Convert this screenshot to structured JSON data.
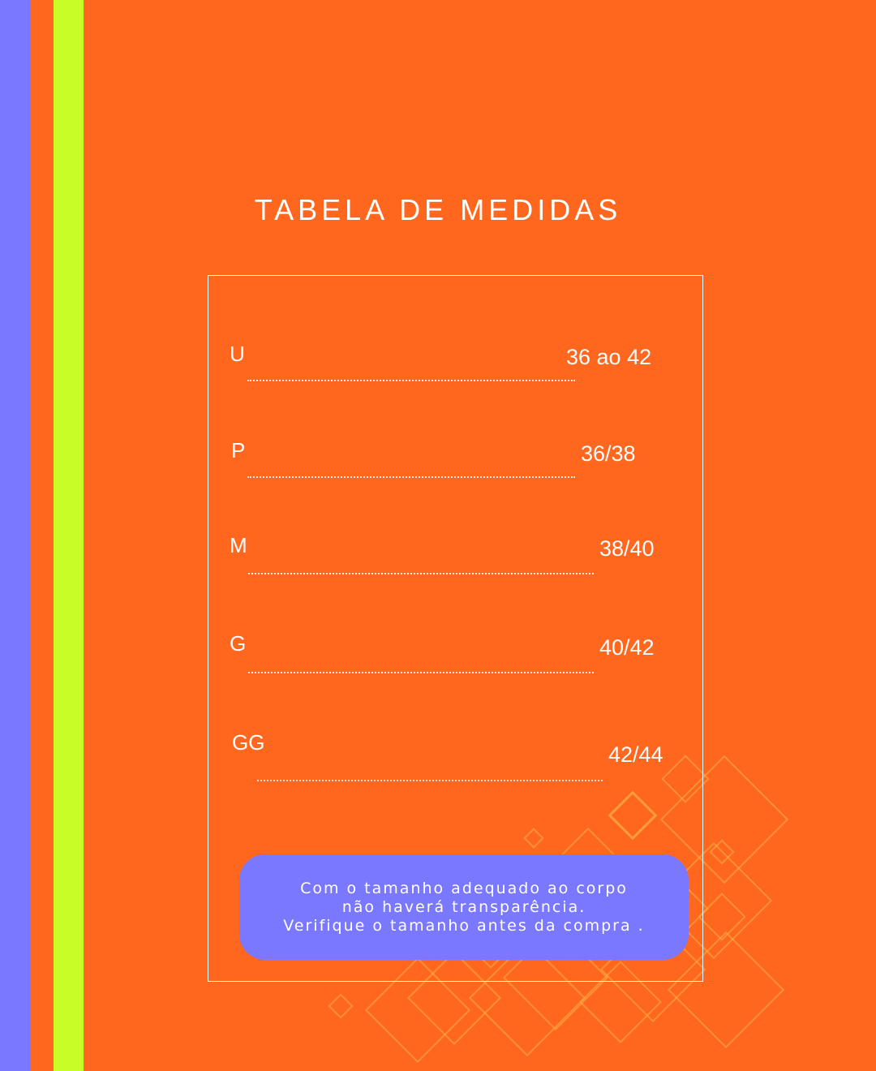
{
  "title": "TABELA DE MEDIDAS",
  "sizes": [
    {
      "label": "U",
      "value": "36 ao 42"
    },
    {
      "label": "P",
      "value": "36/38"
    },
    {
      "label": "M",
      "value": "38/40"
    },
    {
      "label": "G",
      "value": "40/42"
    },
    {
      "label": "GG",
      "value": "42/44"
    }
  ],
  "note": {
    "line1": "Com o tamanho adequado ao corpo",
    "line2": "não haverá transparência.",
    "line3": "Verifique o tamanho antes da compra ."
  },
  "colors": {
    "background": "#FF671F",
    "stripe_blue": "#7978FF",
    "stripe_lime": "#C8FD28",
    "note_background": "#7978FF",
    "text": "#FFFFFF"
  }
}
